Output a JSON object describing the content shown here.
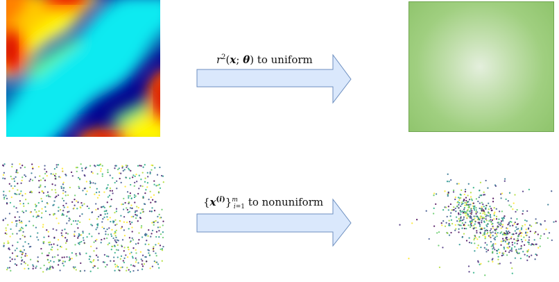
{
  "top_row": {
    "arrow_label_tex": "r^2(\\boldsymbol{x};\\boldsymbol{\\theta}) to uniform",
    "arrow_fill": "#dae8fc",
    "arrow_stroke": "#6c8ebf",
    "target_box_color": "#97c774"
  },
  "bottom_row": {
    "arrow_label_tex": "\\{\\boldsymbol{x}^{(i)}\\}_{i=1}^{m} to nonuniform",
    "arrow_fill": "#dae8fc",
    "arrow_stroke": "#6c8ebf"
  },
  "heatmap": {
    "colormap": "jet"
  },
  "scatter": {
    "colormap": "viridis",
    "uniform_count": 900,
    "nonuniform_count": 650
  }
}
